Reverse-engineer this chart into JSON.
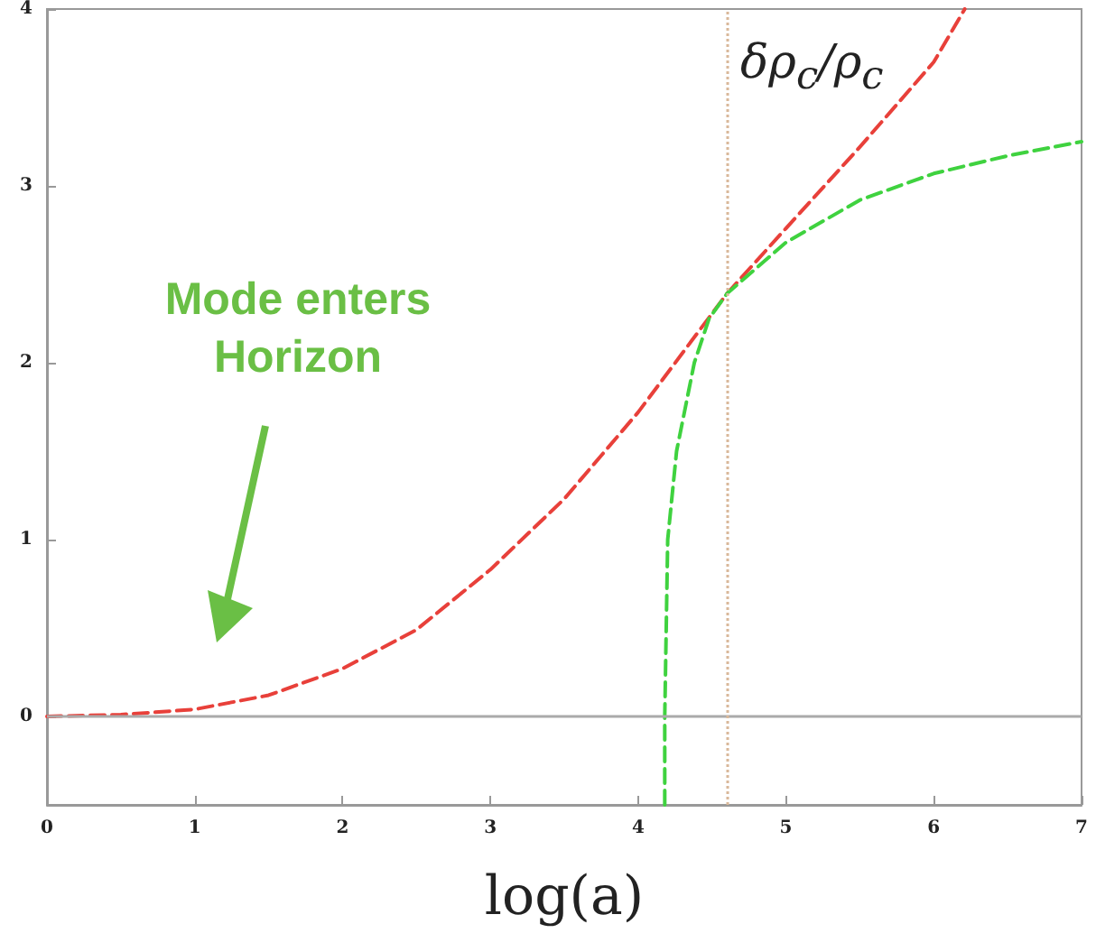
{
  "chart_data": {
    "type": "line",
    "xlabel": "log(a)",
    "annotations": [
      "Mode enters Horizon",
      "δρ$_{c}$/ρ$_{c}$"
    ],
    "xlim": [
      0,
      7
    ],
    "xticks": [
      0,
      1,
      2,
      3,
      4,
      5,
      6,
      7
    ],
    "ylim": [
      -0.5,
      4
    ],
    "yticks": [
      0,
      1,
      2,
      3,
      4
    ],
    "grid": false,
    "marker": "none",
    "series": [
      {
        "color": "#e8403a",
        "line_style": "dashed",
        "x": [
          0,
          0.5,
          1,
          1.5,
          2,
          2.5,
          3,
          3.5,
          4,
          4.6,
          5,
          5.5,
          6,
          6.21
        ],
        "values": [
          0,
          0.01,
          0.04,
          0.12,
          0.27,
          0.49,
          0.83,
          1.23,
          1.72,
          2.39,
          2.76,
          3.22,
          3.7,
          4
        ]
      },
      {
        "color": "#3fd23f",
        "line_style": "dashed",
        "x": [
          4.18,
          4.18,
          4.2,
          4.26,
          4.38,
          4.48,
          4.6,
          5,
          5.5,
          6,
          6.5,
          7
        ],
        "values": [
          -0.5,
          0,
          1,
          1.5,
          2,
          2.25,
          2.39,
          2.68,
          2.92,
          3.07,
          3.17,
          3.25
        ]
      }
    ],
    "ref_lines": [
      {
        "axis": "y",
        "value": 0,
        "color": "#aaaaaa",
        "line_style": "solid"
      },
      {
        "axis": "x",
        "value": 4.6,
        "color": "#d9b89a",
        "line_style": "dotted"
      }
    ]
  }
}
